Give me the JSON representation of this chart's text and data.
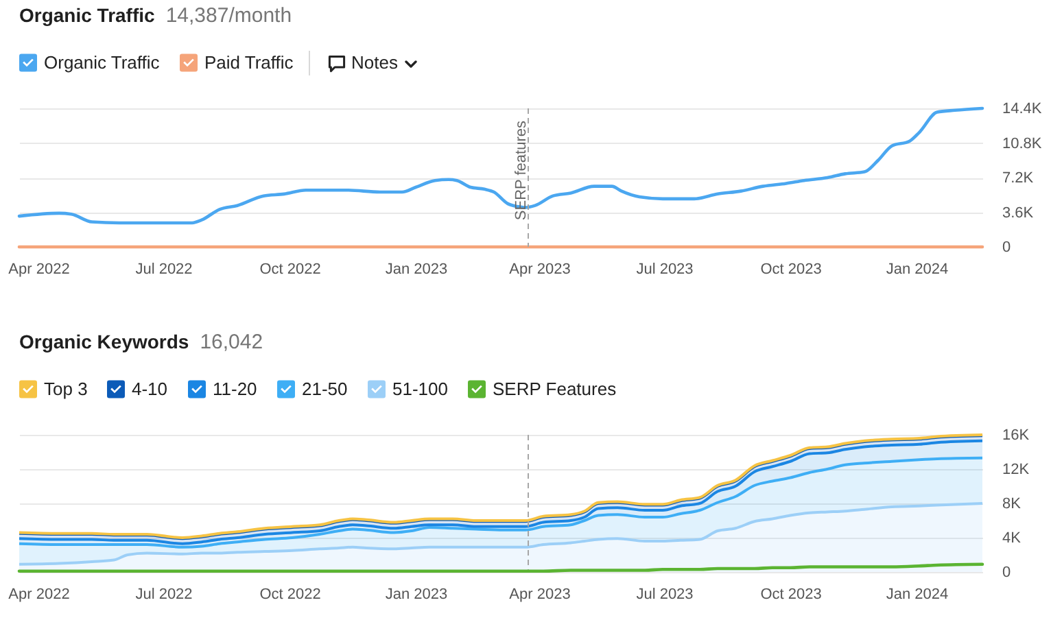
{
  "chart_data": [
    {
      "type": "line",
      "title": "Organic Traffic",
      "subtitle": "14,387/month",
      "x": [
        "2022-03-18",
        "2022-04-16",
        "2022-04-25",
        "2022-05-10",
        "2022-05-30",
        "2022-06-25",
        "2022-07-22",
        "2022-07-29",
        "2022-08-11",
        "2022-08-24",
        "2022-09-12",
        "2022-09-27",
        "2022-10-13",
        "2022-11-12",
        "2022-12-06",
        "2022-12-22",
        "2023-01-01",
        "2023-01-15",
        "2023-01-25",
        "2023-01-31",
        "2023-02-10",
        "2023-02-20",
        "2023-02-27",
        "2023-03-09",
        "2023-03-16",
        "2023-03-22",
        "2023-03-29",
        "2023-04-11",
        "2023-04-24",
        "2023-05-11",
        "2023-05-24",
        "2023-05-31",
        "2023-06-13",
        "2023-06-30",
        "2023-07-23",
        "2023-08-09",
        "2023-08-26",
        "2023-09-11",
        "2023-09-28",
        "2023-10-11",
        "2023-10-28",
        "2023-11-10",
        "2023-11-24",
        "2023-12-04",
        "2023-12-14",
        "2023-12-27",
        "2024-01-03",
        "2024-01-16",
        "2024-01-29",
        "2024-02-18"
      ],
      "series": [
        {
          "name": "Organic Traffic",
          "color": "#4ba7f0",
          "values": [
            3200,
            3500,
            3400,
            2600,
            2500,
            2500,
            2500,
            2800,
            3900,
            4300,
            5300,
            5500,
            5900,
            5900,
            5700,
            5700,
            6200,
            6900,
            7000,
            6900,
            6200,
            6000,
            5700,
            4500,
            4200,
            4100,
            4300,
            5300,
            5600,
            6300,
            6300,
            5800,
            5200,
            5000,
            5000,
            5500,
            5800,
            6300,
            6600,
            6900,
            7200,
            7600,
            7800,
            9000,
            10500,
            11000,
            11900,
            14000,
            14200,
            14400
          ]
        },
        {
          "name": "Paid Traffic",
          "color": "#f5a47a",
          "x": [
            "2022-03-18",
            "2024-02-18"
          ],
          "values": [
            0,
            0
          ]
        }
      ],
      "xlim": [
        "2022-03-18",
        "2024-02-18"
      ],
      "xticks": [
        {
          "value": "2022-04",
          "label": "Apr 2022"
        },
        {
          "value": "2022-07",
          "label": "Jul 2022"
        },
        {
          "value": "2022-10",
          "label": "Oct 2022"
        },
        {
          "value": "2023-01",
          "label": "Jan 2023"
        },
        {
          "value": "2023-04",
          "label": "Apr 2023"
        },
        {
          "value": "2023-07",
          "label": "Jul 2023"
        },
        {
          "value": "2023-10",
          "label": "Oct 2023"
        },
        {
          "value": "2024-01",
          "label": "Jan 2024"
        }
      ],
      "ylim": [
        0,
        14400
      ],
      "yticks": [
        0,
        {
          "value": 3600,
          "label": "3.6K"
        },
        {
          "value": 7200,
          "label": "7.2K"
        },
        {
          "value": 10800,
          "label": "10.8K"
        },
        {
          "value": 14400,
          "label": "14.4K"
        }
      ],
      "grid": "y",
      "legend": "top left",
      "ref_lines": [
        {
          "axis": "x",
          "value": "2023-03-24",
          "label": "SERP features",
          "line_style": "dashed",
          "color": "#a6a6a6"
        }
      ],
      "annotations": [
        "Notes"
      ]
    },
    {
      "type": "area",
      "title": "Organic Keywords",
      "subtitle": "16,042",
      "stacked": true,
      "x": [
        "2022-03-18",
        "2022-04-16",
        "2022-05-10",
        "2022-05-26",
        "2022-06-05",
        "2022-06-19",
        "2022-07-15",
        "2022-07-29",
        "2022-08-11",
        "2022-08-24",
        "2022-09-13",
        "2022-10-03",
        "2022-10-23",
        "2022-11-06",
        "2022-11-16",
        "2022-11-26",
        "2022-12-16",
        "2022-12-29",
        "2023-01-11",
        "2023-01-28",
        "2023-02-14",
        "2023-03-06",
        "2023-03-22",
        "2023-04-04",
        "2023-04-24",
        "2023-05-04",
        "2023-05-14",
        "2023-05-28",
        "2023-06-17",
        "2023-06-30",
        "2023-07-13",
        "2023-07-27",
        "2023-08-09",
        "2023-08-22",
        "2023-09-05",
        "2023-09-18",
        "2023-10-01",
        "2023-10-15",
        "2023-10-28",
        "2023-11-10",
        "2023-11-24",
        "2023-12-14",
        "2024-01-03",
        "2024-01-16",
        "2024-02-18"
      ],
      "series": [
        {
          "name": "51-100",
          "color": "#9ccff7",
          "values": [
            900,
            1000,
            1200,
            1400,
            2000,
            2200,
            2100,
            2200,
            2200,
            2300,
            2400,
            2500,
            2700,
            2800,
            2900,
            2800,
            2700,
            2800,
            2900,
            2900,
            2900,
            2900,
            2900,
            3200,
            3400,
            3600,
            3800,
            3900,
            3600,
            3600,
            3700,
            3800,
            4800,
            5100,
            5900,
            6200,
            6600,
            6900,
            7000,
            7100,
            7300,
            7600,
            7700,
            7800,
            8000
          ]
        },
        {
          "name": "21-50",
          "color": "#3eaef5",
          "values": [
            2400,
            2200,
            2000,
            1800,
            1200,
            1000,
            800,
            800,
            1100,
            1200,
            1400,
            1500,
            1700,
            2000,
            2100,
            2100,
            1900,
            2000,
            2300,
            2200,
            2100,
            2000,
            2000,
            2100,
            2100,
            2400,
            2800,
            2800,
            2800,
            2800,
            3100,
            3400,
            3300,
            3700,
            4200,
            4400,
            4400,
            4700,
            5000,
            5400,
            5400,
            5300,
            5400,
            5400,
            5300
          ]
        },
        {
          "name": "11-20",
          "color": "#1b86e3",
          "values": [
            600,
            600,
            600,
            500,
            500,
            500,
            400,
            500,
            500,
            500,
            600,
            600,
            400,
            500,
            500,
            500,
            500,
            500,
            300,
            400,
            300,
            400,
            400,
            500,
            500,
            400,
            800,
            800,
            800,
            800,
            900,
            800,
            1300,
            1200,
            1600,
            1700,
            1900,
            2200,
            1900,
            1800,
            1900,
            1900,
            1800,
            1900,
            2000
          ]
        },
        {
          "name": "4-10",
          "color": "#0c5bb8",
          "values": [
            600,
            600,
            600,
            600,
            600,
            600,
            600,
            600,
            600,
            600,
            600,
            600,
            600,
            600,
            600,
            600,
            600,
            600,
            600,
            600,
            600,
            600,
            600,
            600,
            600,
            600,
            600,
            600,
            600,
            600,
            600,
            600,
            600,
            600,
            600,
            600,
            600,
            600,
            600,
            600,
            600,
            600,
            600,
            600,
            600
          ]
        },
        {
          "name": "Top 3",
          "color": "#f6c344",
          "values": [
            100,
            100,
            100,
            100,
            100,
            100,
            100,
            100,
            100,
            100,
            100,
            100,
            100,
            100,
            100,
            100,
            100,
            100,
            100,
            100,
            100,
            100,
            100,
            100,
            100,
            100,
            100,
            100,
            100,
            100,
            100,
            100,
            100,
            100,
            100,
            100,
            100,
            100,
            100,
            100,
            100,
            100,
            100,
            100,
            100
          ]
        },
        {
          "name": "SERP Features",
          "type": "line",
          "color": "#5bb432",
          "values": [
            100,
            100,
            100,
            100,
            100,
            100,
            100,
            100,
            100,
            100,
            100,
            100,
            100,
            100,
            100,
            100,
            100,
            100,
            100,
            100,
            100,
            100,
            100,
            100,
            200,
            200,
            200,
            200,
            200,
            300,
            300,
            300,
            400,
            400,
            400,
            500,
            500,
            600,
            600,
            600,
            600,
            600,
            700,
            800,
            900
          ]
        }
      ],
      "xlim": [
        "2022-03-18",
        "2024-02-18"
      ],
      "xticks": [
        {
          "value": "2022-04",
          "label": "Apr 2022"
        },
        {
          "value": "2022-07",
          "label": "Jul 2022"
        },
        {
          "value": "2022-10",
          "label": "Oct 2022"
        },
        {
          "value": "2023-01",
          "label": "Jan 2023"
        },
        {
          "value": "2023-04",
          "label": "Apr 2023"
        },
        {
          "value": "2023-07",
          "label": "Jul 2023"
        },
        {
          "value": "2023-10",
          "label": "Oct 2023"
        },
        {
          "value": "2024-01",
          "label": "Jan 2024"
        }
      ],
      "ylim": [
        0,
        16000
      ],
      "yticks": [
        0,
        {
          "value": 4000,
          "label": "4K"
        },
        {
          "value": 8000,
          "label": "8K"
        },
        {
          "value": 12000,
          "label": "12K"
        },
        {
          "value": 16000,
          "label": "16K"
        }
      ],
      "grid": "y",
      "legend": "top left",
      "ref_lines": [
        {
          "axis": "x",
          "value": "2023-03-24",
          "line_style": "dashed",
          "color": "#a6a6a6"
        }
      ]
    }
  ]
}
